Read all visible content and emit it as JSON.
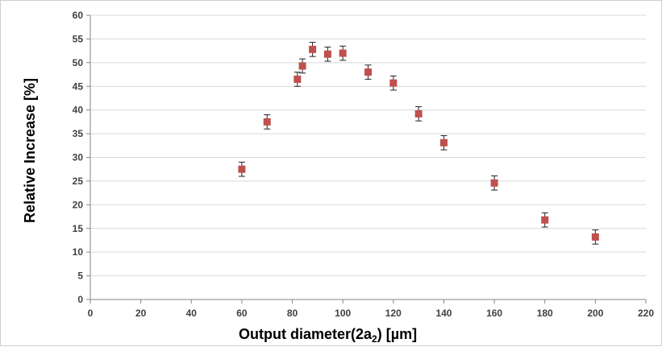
{
  "chart_data": {
    "type": "scatter",
    "title": "",
    "xlabel": "Output diameter(2a",
    "xlabel_sub": "2",
    "xlabel_suffix": ")  [µm]",
    "ylabel": "Relative Increase [%]",
    "xlim": [
      0,
      220
    ],
    "ylim": [
      0,
      60
    ],
    "x_ticks": [
      0,
      20,
      40,
      60,
      80,
      100,
      120,
      140,
      160,
      180,
      200,
      220
    ],
    "y_ticks": [
      0,
      5,
      10,
      15,
      20,
      25,
      30,
      35,
      40,
      45,
      50,
      55,
      60
    ],
    "grid": "horizontal",
    "legend": "none",
    "marker_color": "#c0504d",
    "series": [
      {
        "points": [
          {
            "x": 60,
            "y": 27.5,
            "err": 1.5
          },
          {
            "x": 70,
            "y": 37.5,
            "err": 1.5
          },
          {
            "x": 82,
            "y": 46.5,
            "err": 1.5
          },
          {
            "x": 84,
            "y": 49.3,
            "err": 1.5
          },
          {
            "x": 88,
            "y": 52.8,
            "err": 1.5
          },
          {
            "x": 94,
            "y": 51.8,
            "err": 1.5
          },
          {
            "x": 100,
            "y": 52.0,
            "err": 1.5
          },
          {
            "x": 110,
            "y": 48.0,
            "err": 1.5
          },
          {
            "x": 120,
            "y": 45.7,
            "err": 1.5
          },
          {
            "x": 130,
            "y": 39.2,
            "err": 1.5
          },
          {
            "x": 140,
            "y": 33.1,
            "err": 1.5
          },
          {
            "x": 160,
            "y": 24.6,
            "err": 1.5
          },
          {
            "x": 180,
            "y": 16.8,
            "err": 1.5
          },
          {
            "x": 200,
            "y": 13.2,
            "err": 1.5
          }
        ]
      }
    ]
  }
}
